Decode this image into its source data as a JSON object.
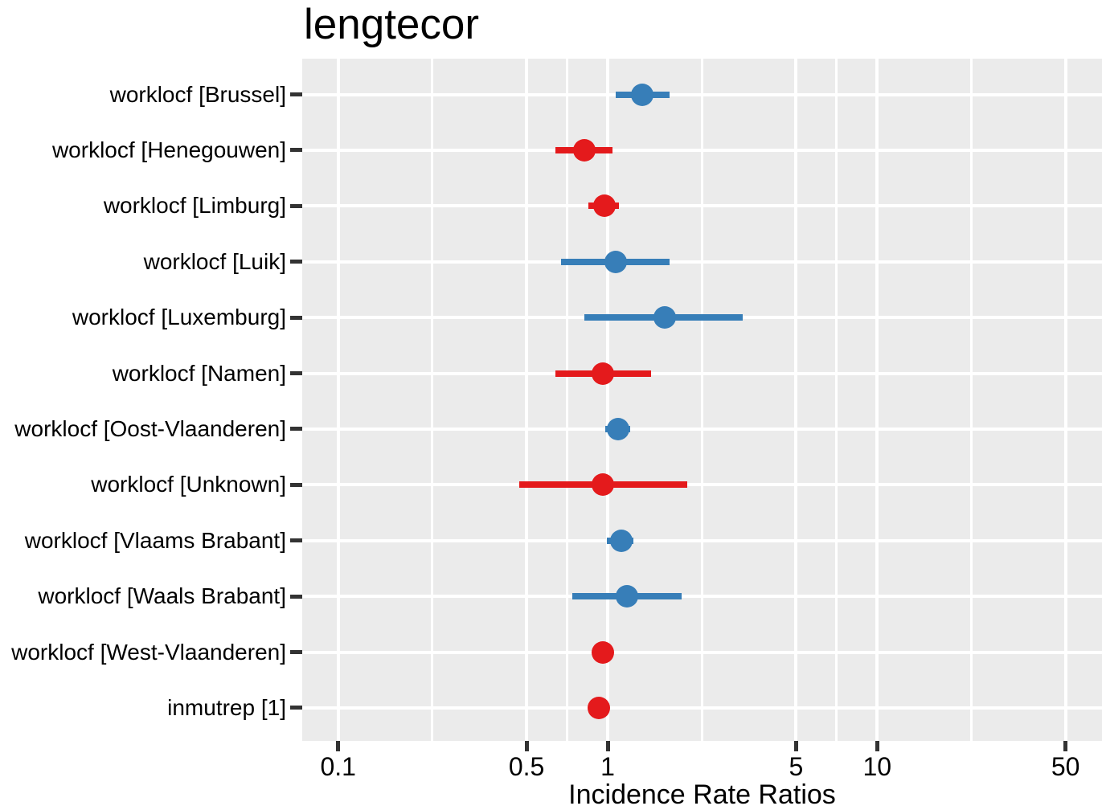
{
  "title": "lengtecor",
  "colors": {
    "positive": "#377EB8",
    "negative": "#E41A1C",
    "panel_bg": "#EBEBEB",
    "gridline": "#FFFFFF",
    "tick_mark": "#333333",
    "text": "#000000"
  },
  "chart_data": {
    "type": "scatter",
    "subtype": "forest-plot-with-error-bars",
    "title": "lengtecor",
    "xlabel": "Incidence Rate Ratios",
    "ylabel": "",
    "x_scale": "log10",
    "x_range": [
      0.074,
      61
    ],
    "x_ticks": [
      0.1,
      0.5,
      1,
      5,
      10,
      50
    ],
    "x_tick_labels": [
      "0.1",
      "0.5",
      "1",
      "5",
      "10",
      "50"
    ],
    "x_minor_gridlines": [
      0.2236,
      0.7071,
      2.2361,
      7.0711,
      22.3607
    ],
    "grid": "on",
    "legend": "none",
    "point_color_meaning": "blue = estimate > 1, red = estimate < 1",
    "series": [
      {
        "label": "worklocf [Brussel]",
        "estimate": 1.34,
        "ci_low": 1.07,
        "ci_high": 1.7,
        "direction": "positive"
      },
      {
        "label": "worklocf [Henegouwen]",
        "estimate": 0.82,
        "ci_low": 0.64,
        "ci_high": 1.04,
        "direction": "negative"
      },
      {
        "label": "worklocf [Limburg]",
        "estimate": 0.97,
        "ci_low": 0.85,
        "ci_high": 1.1,
        "direction": "negative"
      },
      {
        "label": "worklocf [Luik]",
        "estimate": 1.07,
        "ci_low": 0.67,
        "ci_high": 1.7,
        "direction": "positive"
      },
      {
        "label": "worklocf [Luxemburg]",
        "estimate": 1.63,
        "ci_low": 0.82,
        "ci_high": 3.17,
        "direction": "positive"
      },
      {
        "label": "worklocf [Namen]",
        "estimate": 0.96,
        "ci_low": 0.64,
        "ci_high": 1.45,
        "direction": "negative"
      },
      {
        "label": "worklocf [Oost-Vlaanderen]",
        "estimate": 1.09,
        "ci_low": 0.98,
        "ci_high": 1.21,
        "direction": "positive"
      },
      {
        "label": "worklocf [Unknown]",
        "estimate": 0.96,
        "ci_low": 0.47,
        "ci_high": 1.97,
        "direction": "negative"
      },
      {
        "label": "worklocf [Vlaams Brabant]",
        "estimate": 1.12,
        "ci_low": 0.99,
        "ci_high": 1.25,
        "direction": "positive"
      },
      {
        "label": "worklocf [Waals Brabant]",
        "estimate": 1.18,
        "ci_low": 0.74,
        "ci_high": 1.88,
        "direction": "positive"
      },
      {
        "label": "worklocf [West-Vlaanderen]",
        "estimate": 0.96,
        "ci_low": 0.9,
        "ci_high": 1.02,
        "direction": "negative"
      },
      {
        "label": "inmutrep [1]",
        "estimate": 0.93,
        "ci_low": 0.88,
        "ci_high": 0.99,
        "direction": "negative"
      }
    ]
  }
}
